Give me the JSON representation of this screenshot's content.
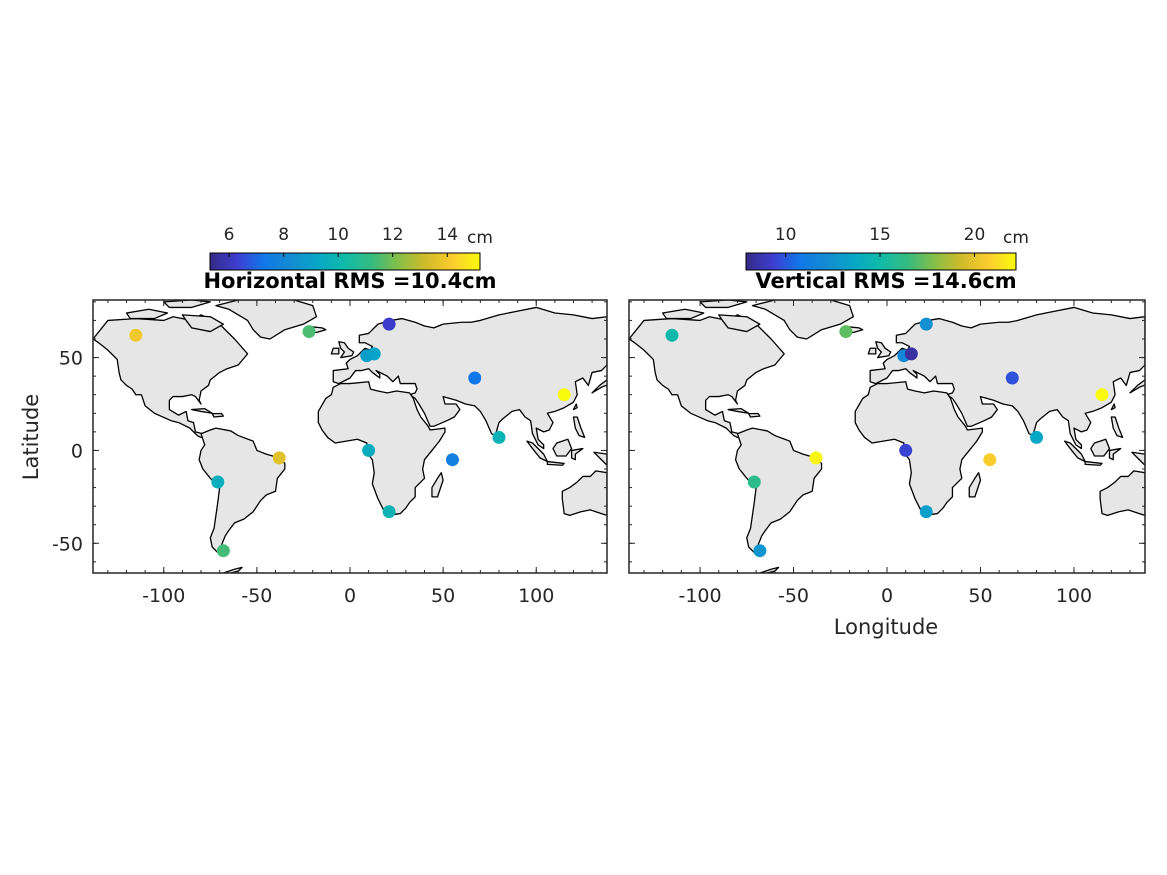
{
  "figure": {
    "axes": {
      "xticks": [
        -100,
        -50,
        0,
        50,
        100
      ],
      "yticks": [
        50,
        0,
        -50
      ],
      "xlim": [
        -138,
        138
      ],
      "ylim": [
        -66,
        81
      ],
      "ylabel": "Latitude",
      "xlabel": "Longitude"
    },
    "colormap": "parula",
    "colors": {
      "land": "#e6e6e6",
      "coast": "#000000",
      "frame": "#262626"
    }
  },
  "chart_data": [
    {
      "type": "scatter",
      "title": "Horizontal RMS =10.4cm",
      "colorbar": {
        "ticks": [
          6,
          8,
          10,
          12,
          14
        ],
        "lim": [
          5.3,
          15.2
        ],
        "unit": "cm"
      },
      "xlabel": "",
      "ylabel": "Latitude",
      "points": [
        {
          "lon": -115,
          "lat": 62,
          "value": 13.9
        },
        {
          "lon": -22,
          "lat": 64,
          "value": 11.5
        },
        {
          "lon": 21,
          "lat": 68,
          "value": 6.2
        },
        {
          "lon": 9,
          "lat": 51,
          "value": 8.9
        },
        {
          "lon": 13,
          "lat": 52,
          "value": 9.1
        },
        {
          "lon": 67,
          "lat": 39,
          "value": 7.3
        },
        {
          "lon": 115,
          "lat": 30,
          "value": 15.2
        },
        {
          "lon": 80,
          "lat": 7,
          "value": 9.8
        },
        {
          "lon": 55,
          "lat": -5,
          "value": 7.7
        },
        {
          "lon": 10,
          "lat": 0,
          "value": 9.5
        },
        {
          "lon": -38,
          "lat": -4,
          "value": 13.6
        },
        {
          "lon": -71,
          "lat": -17,
          "value": 9.6
        },
        {
          "lon": -68,
          "lat": -54,
          "value": 11.4
        },
        {
          "lon": 21,
          "lat": -33,
          "value": 9.9
        }
      ]
    },
    {
      "type": "scatter",
      "title": "Vertical RMS =14.6cm",
      "colorbar": {
        "ticks": [
          10,
          15,
          20
        ],
        "lim": [
          7.9,
          22.2
        ],
        "unit": "cm"
      },
      "xlabel": "Longitude",
      "ylabel": "",
      "points": [
        {
          "lon": -115,
          "lat": 62,
          "value": 14.8
        },
        {
          "lon": -22,
          "lat": 64,
          "value": 17.2
        },
        {
          "lon": 21,
          "lat": 68,
          "value": 12.4
        },
        {
          "lon": 9,
          "lat": 51,
          "value": 11.8
        },
        {
          "lon": 13,
          "lat": 52,
          "value": 8.4
        },
        {
          "lon": 67,
          "lat": 39,
          "value": 9.8
        },
        {
          "lon": 115,
          "lat": 30,
          "value": 22.2
        },
        {
          "lon": 80,
          "lat": 7,
          "value": 13.6
        },
        {
          "lon": 55,
          "lat": -5,
          "value": 20.7
        },
        {
          "lon": 10,
          "lat": 0,
          "value": 9.5
        },
        {
          "lon": -38,
          "lat": -4,
          "value": 22.0
        },
        {
          "lon": -71,
          "lat": -17,
          "value": 16.1
        },
        {
          "lon": -68,
          "lat": -54,
          "value": 12.7
        },
        {
          "lon": 21,
          "lat": -33,
          "value": 13.2
        }
      ]
    }
  ]
}
